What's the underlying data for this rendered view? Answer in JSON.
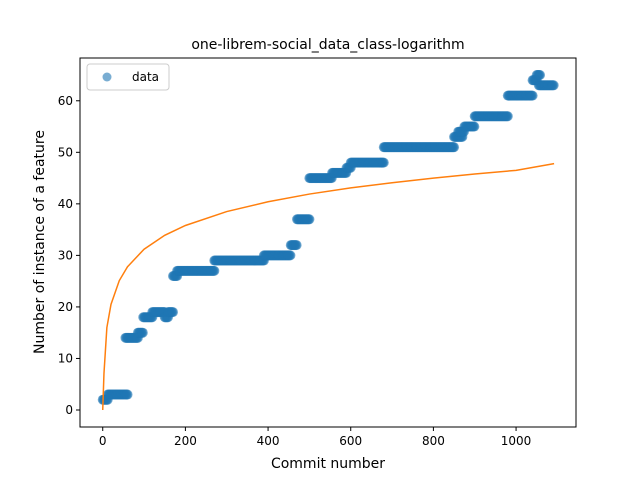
{
  "chart_data": {
    "type": "scatter",
    "title": "one-librem-social_data_class-logarithm",
    "xlabel": "Commit number",
    "ylabel": "Number of instance of a feature",
    "xlim": [
      -55,
      1145
    ],
    "ylim": [
      -3.3,
      68.3
    ],
    "xticks": [
      0,
      200,
      400,
      600,
      800,
      1000
    ],
    "yticks": [
      0,
      10,
      20,
      30,
      40,
      50,
      60
    ],
    "grid": false,
    "legend": {
      "location": "upper-left",
      "entries": [
        "data"
      ]
    },
    "colors": {
      "data": "#1f77b4",
      "fit": "#ff7f0e"
    },
    "series": [
      {
        "name": "data",
        "kind": "scatter",
        "segments": [
          {
            "x_start": 0,
            "x_end": 12,
            "y": 2
          },
          {
            "x_start": 12,
            "x_end": 60,
            "y": 3
          },
          {
            "x_start": 55,
            "x_end": 85,
            "y": 14
          },
          {
            "x_start": 85,
            "x_end": 98,
            "y": 15
          },
          {
            "x_start": 98,
            "x_end": 120,
            "y": 18
          },
          {
            "x_start": 120,
            "x_end": 150,
            "y": 19
          },
          {
            "x_start": 150,
            "x_end": 158,
            "y": 18
          },
          {
            "x_start": 158,
            "x_end": 170,
            "y": 19
          },
          {
            "x_start": 170,
            "x_end": 180,
            "y": 26
          },
          {
            "x_start": 180,
            "x_end": 270,
            "y": 27
          },
          {
            "x_start": 270,
            "x_end": 390,
            "y": 29
          },
          {
            "x_start": 390,
            "x_end": 455,
            "y": 30
          },
          {
            "x_start": 455,
            "x_end": 470,
            "y": 32
          },
          {
            "x_start": 470,
            "x_end": 500,
            "y": 37
          },
          {
            "x_start": 500,
            "x_end": 555,
            "y": 45
          },
          {
            "x_start": 555,
            "x_end": 590,
            "y": 46
          },
          {
            "x_start": 590,
            "x_end": 600,
            "y": 47
          },
          {
            "x_start": 600,
            "x_end": 680,
            "y": 48
          },
          {
            "x_start": 680,
            "x_end": 850,
            "y": 51
          },
          {
            "x_start": 850,
            "x_end": 870,
            "y": 53
          },
          {
            "x_start": 860,
            "x_end": 875,
            "y": 54
          },
          {
            "x_start": 875,
            "x_end": 900,
            "y": 55
          },
          {
            "x_start": 900,
            "x_end": 980,
            "y": 57
          },
          {
            "x_start": 980,
            "x_end": 1040,
            "y": 61
          },
          {
            "x_start": 1040,
            "x_end": 1050,
            "y": 64
          },
          {
            "x_start": 1050,
            "x_end": 1058,
            "y": 65
          },
          {
            "x_start": 1055,
            "x_end": 1092,
            "y": 63
          }
        ]
      },
      {
        "name": "",
        "kind": "line",
        "x": [
          0,
          3,
          10,
          20,
          40,
          60,
          100,
          150,
          200,
          300,
          400,
          500,
          600,
          700,
          800,
          900,
          1000,
          1092
        ],
        "y": [
          0,
          7.1,
          16.0,
          20.5,
          25.1,
          27.8,
          31.2,
          33.9,
          35.8,
          38.5,
          40.4,
          41.9,
          43.1,
          44.1,
          45.0,
          45.8,
          46.5,
          47.8
        ]
      }
    ]
  }
}
